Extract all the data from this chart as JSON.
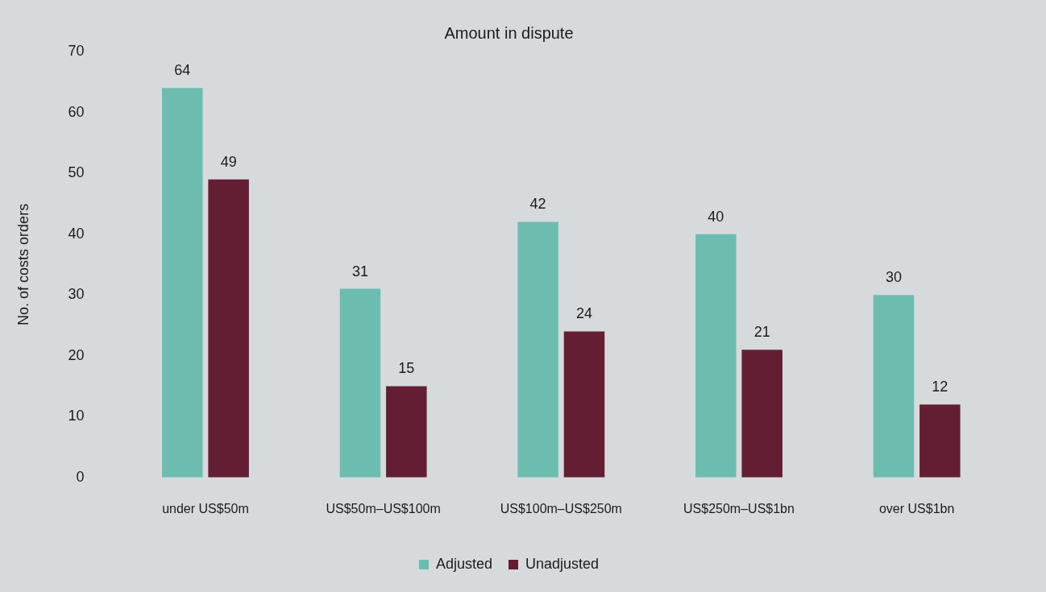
{
  "chart_data": {
    "type": "bar",
    "title": "Amount in dispute",
    "ylabel": "No. of costs orders",
    "categories": [
      "under US$50m",
      "US$50m–US$100m",
      "US$100m–US$250m",
      "US$250m–US$1bn",
      "over US$1bn"
    ],
    "series": [
      {
        "name": "Adjusted",
        "color": "#6dbcb0",
        "values": [
          64,
          31,
          42,
          40,
          30
        ]
      },
      {
        "name": "Unadjusted",
        "color": "#641e33",
        "values": [
          49,
          15,
          24,
          21,
          12
        ]
      }
    ],
    "ylim": [
      0,
      70
    ],
    "yticks": [
      0,
      10,
      20,
      30,
      40,
      50,
      60,
      70
    ],
    "grid": false,
    "legend": "bottom",
    "data_labels": true
  }
}
